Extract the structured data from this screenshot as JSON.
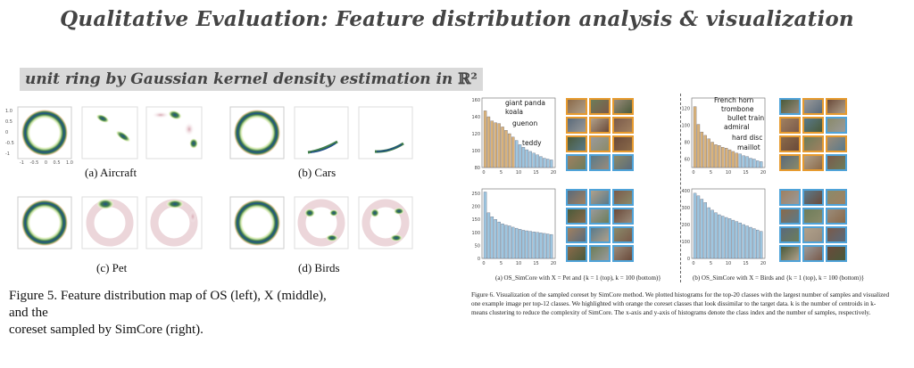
{
  "slide": {
    "title": "Qualitative Evaluation: Feature distribution analysis & visualization",
    "subtitle": "unit ring by Gaussian kernel density estimation in",
    "subtitle_math": "ℝ²"
  },
  "fig5": {
    "panels": [
      {
        "label": "(a) Aircraft"
      },
      {
        "label": "(b) Cars"
      },
      {
        "label": "(c) Pet"
      },
      {
        "label": "(d) Birds"
      }
    ],
    "caption_line1": "Figure 5. Feature distribution map of OS (left), X (middle), and the",
    "caption_line2": "coreset sampled by SimCore (right).",
    "yticks": [
      "1.0",
      "0.5",
      "0",
      "-0.5",
      "-1"
    ],
    "xticks": [
      "-1",
      "-0.5",
      "0",
      "0.5",
      "1.0"
    ]
  },
  "fig6": {
    "left_caption": "(a) OS_SimCore with X = Pet and {k = 1 (top), k = 100 (bottom)}",
    "right_caption": "(b) OS_SimCore with X = Birds and {k = 1 (top), k = 100 (bottom)}",
    "caption": "Figure 6. Visualization of the sampled coreset by SimCore method. We plotted histograms for the top-20 classes with the largest number of samples and visualized one example image per top-12 classes. We highlighted with orange the coreset classes that look dissimilar to the target data. k is the number of centroids in k-means clustering to reduce the complexity of SimCore. The x-axis and y-axis of histograms denote the class index and the number of samples, respectively.",
    "pet_labels": [
      "giant panda",
      "koala",
      "guenon",
      "teddy"
    ],
    "bird_labels": [
      "French horn",
      "trombone",
      "bullet train",
      "admiral",
      "hard disc",
      "maillot"
    ],
    "colors": {
      "blue": "#9ec6e0",
      "orange": "#d9b27a",
      "thumb_blue": "#4fa3d9",
      "thumb_orange": "#e79b2f"
    }
  },
  "chart_data": [
    {
      "type": "bar",
      "title": "Pet k=1",
      "categories": [
        1,
        2,
        3,
        4,
        5,
        6,
        7,
        8,
        9,
        10,
        11,
        12,
        13,
        14,
        15,
        16,
        17,
        18,
        19,
        20
      ],
      "values": [
        147,
        140,
        135,
        133,
        132,
        128,
        124,
        120,
        116,
        112,
        107,
        104,
        101,
        99,
        97,
        95,
        93,
        91,
        90,
        89
      ],
      "highlight": [
        1,
        2,
        3,
        4,
        5,
        6,
        7,
        8,
        9
      ],
      "ylim": [
        80,
        160
      ],
      "yticks": [
        "80",
        "100",
        "120",
        "140",
        "160"
      ],
      "xticks": [
        "0",
        "5",
        "10",
        "15",
        "20"
      ]
    },
    {
      "type": "bar",
      "title": "Birds k=1",
      "categories": [
        1,
        2,
        3,
        4,
        5,
        6,
        7,
        8,
        9,
        10,
        11,
        12,
        13,
        14,
        15,
        16,
        17,
        18,
        19,
        20
      ],
      "values": [
        122,
        101,
        92,
        88,
        84,
        80,
        77,
        76,
        74,
        73,
        71,
        69,
        67,
        66,
        64,
        63,
        61,
        60,
        58,
        57
      ],
      "highlight": [
        1,
        2,
        3,
        4,
        5,
        6,
        7,
        8,
        9,
        10,
        11,
        12,
        13
      ],
      "ylim": [
        50,
        130
      ],
      "yticks": [
        "60",
        "80",
        "100",
        "120"
      ],
      "xticks": [
        "0",
        "5",
        "10",
        "15",
        "20"
      ]
    },
    {
      "type": "bar",
      "title": "Pet k=100",
      "categories": [
        1,
        2,
        3,
        4,
        5,
        6,
        7,
        8,
        9,
        10,
        11,
        12,
        13,
        14,
        15,
        16,
        17,
        18,
        19,
        20
      ],
      "values": [
        255,
        175,
        160,
        150,
        140,
        133,
        128,
        125,
        120,
        116,
        112,
        108,
        106,
        104,
        102,
        100,
        98,
        96,
        94,
        92
      ],
      "highlight": [],
      "ylim": [
        0,
        260
      ],
      "yticks": [
        "0",
        "50",
        "100",
        "150",
        "200",
        "250"
      ],
      "xticks": [
        "0",
        "5",
        "10",
        "15",
        "20"
      ]
    },
    {
      "type": "bar",
      "title": "Birds k=100",
      "categories": [
        1,
        2,
        3,
        4,
        5,
        6,
        7,
        8,
        9,
        10,
        11,
        12,
        13,
        14,
        15,
        16,
        17,
        18,
        19,
        20
      ],
      "values": [
        385,
        370,
        350,
        330,
        300,
        285,
        270,
        258,
        250,
        242,
        235,
        226,
        218,
        210,
        200,
        192,
        184,
        176,
        168,
        160
      ],
      "highlight": [],
      "ylim": [
        0,
        400
      ],
      "yticks": [
        "0",
        "100",
        "200",
        "300",
        "400"
      ],
      "xticks": [
        "0",
        "5",
        "10",
        "15",
        "20"
      ]
    }
  ]
}
